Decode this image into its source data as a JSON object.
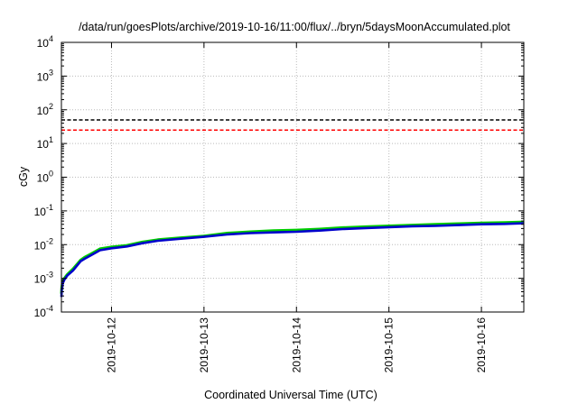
{
  "chart_data": {
    "type": "line",
    "title": "/data/run/goesPlots/archive/2019-10-16/11:00/flux/../bryn/5daysMoonAccumulated.plot",
    "xlabel": "Coordinated Universal Time (UTC)",
    "ylabel": "cGy",
    "yscale": "log",
    "ylim": [
      0.0001,
      10000
    ],
    "xlim": [
      "2019-10-11T11:00",
      "2019-10-16T11:00"
    ],
    "grid": true,
    "legend": "none",
    "x_ticks": [
      "2019-10-12",
      "2019-10-13",
      "2019-10-14",
      "2019-10-15",
      "2019-10-16"
    ],
    "y_ticks": [
      {
        "value": 0.0001,
        "base": "10",
        "exp": "-4"
      },
      {
        "value": 0.001,
        "base": "10",
        "exp": "-3"
      },
      {
        "value": 0.01,
        "base": "10",
        "exp": "-2"
      },
      {
        "value": 0.1,
        "base": "10",
        "exp": "-1"
      },
      {
        "value": 1,
        "base": "10",
        "exp": "0"
      },
      {
        "value": 10,
        "base": "10",
        "exp": "1"
      },
      {
        "value": 100,
        "base": "10",
        "exp": "2"
      },
      {
        "value": 1000,
        "base": "10",
        "exp": "3"
      },
      {
        "value": 10000,
        "base": "10",
        "exp": "4"
      }
    ],
    "thresholds": [
      {
        "value": 50,
        "color": "#000000",
        "style": "dashed"
      },
      {
        "value": 25,
        "color": "#ff0000",
        "style": "dashed"
      }
    ],
    "series": [
      {
        "color": "#00cc00",
        "x": [
          "2019-10-11T11:00",
          "2019-10-11T11:05",
          "2019-10-11T11:20",
          "2019-10-11T11:45",
          "2019-10-11T12:30",
          "2019-10-11T14:00",
          "2019-10-11T16:00",
          "2019-10-11T17:00",
          "2019-10-11T18:30",
          "2019-10-11T21:00",
          "2019-10-12T00:00",
          "2019-10-12T04:00",
          "2019-10-12T08:00",
          "2019-10-12T12:00",
          "2019-10-12T18:00",
          "2019-10-13T00:00",
          "2019-10-13T06:00",
          "2019-10-13T12:00",
          "2019-10-13T18:00",
          "2019-10-14T00:00",
          "2019-10-14T06:00",
          "2019-10-14T12:00",
          "2019-10-14T18:00",
          "2019-10-15T00:00",
          "2019-10-15T06:00",
          "2019-10-15T12:00",
          "2019-10-15T18:00",
          "2019-10-16T00:00",
          "2019-10-16T06:00",
          "2019-10-16T11:00"
        ],
        "y": [
          0.00035,
          0.00055,
          0.0008,
          0.001,
          0.0013,
          0.0019,
          0.0035,
          0.0042,
          0.0052,
          0.0075,
          0.0085,
          0.0095,
          0.012,
          0.014,
          0.016,
          0.018,
          0.022,
          0.024,
          0.026,
          0.027,
          0.029,
          0.032,
          0.034,
          0.036,
          0.038,
          0.04,
          0.042,
          0.044,
          0.045,
          0.047
        ]
      },
      {
        "color": "#0000cc",
        "x": [
          "2019-10-11T11:00",
          "2019-10-11T11:05",
          "2019-10-11T11:20",
          "2019-10-11T11:45",
          "2019-10-11T12:30",
          "2019-10-11T14:00",
          "2019-10-11T16:00",
          "2019-10-11T17:00",
          "2019-10-11T18:30",
          "2019-10-11T21:00",
          "2019-10-12T00:00",
          "2019-10-12T04:00",
          "2019-10-12T08:00",
          "2019-10-12T12:00",
          "2019-10-12T18:00",
          "2019-10-13T00:00",
          "2019-10-13T06:00",
          "2019-10-13T12:00",
          "2019-10-13T18:00",
          "2019-10-14T00:00",
          "2019-10-14T06:00",
          "2019-10-14T12:00",
          "2019-10-14T18:00",
          "2019-10-15T00:00",
          "2019-10-15T06:00",
          "2019-10-15T12:00",
          "2019-10-15T18:00",
          "2019-10-16T00:00",
          "2019-10-16T06:00",
          "2019-10-16T11:00"
        ],
        "y": [
          0.00028,
          0.00048,
          0.0007,
          0.0009,
          0.0012,
          0.0017,
          0.0032,
          0.0038,
          0.0047,
          0.0068,
          0.0078,
          0.0088,
          0.011,
          0.013,
          0.015,
          0.017,
          0.02,
          0.022,
          0.023,
          0.024,
          0.026,
          0.029,
          0.031,
          0.033,
          0.035,
          0.036,
          0.038,
          0.04,
          0.041,
          0.043
        ]
      }
    ]
  }
}
